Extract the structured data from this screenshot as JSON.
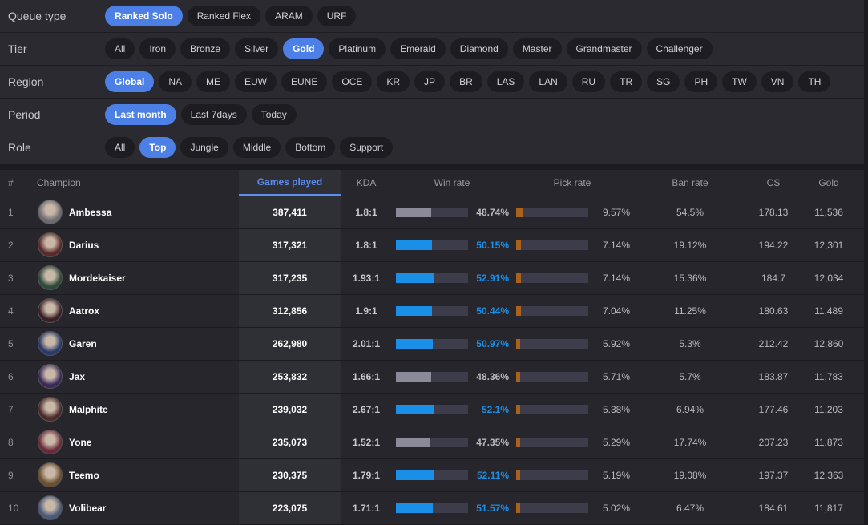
{
  "filters": [
    {
      "label": "Queue type",
      "options": [
        {
          "label": "Ranked Solo",
          "active": true
        },
        {
          "label": "Ranked Flex"
        },
        {
          "label": "ARAM"
        },
        {
          "label": "URF"
        }
      ]
    },
    {
      "label": "Tier",
      "options": [
        {
          "label": "All"
        },
        {
          "label": "Iron"
        },
        {
          "label": "Bronze"
        },
        {
          "label": "Silver"
        },
        {
          "label": "Gold",
          "active": true
        },
        {
          "label": "Platinum"
        },
        {
          "label": "Emerald"
        },
        {
          "label": "Diamond"
        },
        {
          "label": "Master"
        },
        {
          "label": "Grandmaster"
        },
        {
          "label": "Challenger"
        }
      ]
    },
    {
      "label": "Region",
      "options": [
        {
          "label": "Global",
          "active": true
        },
        {
          "label": "NA"
        },
        {
          "label": "ME"
        },
        {
          "label": "EUW"
        },
        {
          "label": "EUNE"
        },
        {
          "label": "OCE"
        },
        {
          "label": "KR"
        },
        {
          "label": "JP"
        },
        {
          "label": "BR"
        },
        {
          "label": "LAS"
        },
        {
          "label": "LAN"
        },
        {
          "label": "RU"
        },
        {
          "label": "TR"
        },
        {
          "label": "SG"
        },
        {
          "label": "PH"
        },
        {
          "label": "TW"
        },
        {
          "label": "VN"
        },
        {
          "label": "TH"
        }
      ]
    },
    {
      "label": "Period",
      "options": [
        {
          "label": "Last month",
          "active": true
        },
        {
          "label": "Last 7days"
        },
        {
          "label": "Today"
        }
      ]
    },
    {
      "label": "Role",
      "options": [
        {
          "label": "All"
        },
        {
          "label": "Top",
          "active": true
        },
        {
          "label": "Jungle"
        },
        {
          "label": "Middle"
        },
        {
          "label": "Bottom"
        },
        {
          "label": "Support"
        }
      ]
    }
  ],
  "table": {
    "columns": [
      {
        "label": "#"
      },
      {
        "label": "Champion"
      },
      {
        "label": "Games played",
        "sorted": true
      },
      {
        "label": "KDA"
      },
      {
        "label": "Win rate"
      },
      {
        "label": "Pick rate"
      },
      {
        "label": "Ban rate"
      },
      {
        "label": "CS"
      },
      {
        "label": "Gold"
      }
    ],
    "bar_scale": [
      0,
      100
    ],
    "rows": [
      {
        "rank": 1,
        "champion": "Ambessa",
        "games": "387,411",
        "kda": "1.8:1",
        "win_rate": {
          "value": 48.74,
          "label": "48.74%"
        },
        "pick_rate": {
          "value": 9.57,
          "label": "9.57%"
        },
        "ban_rate": "54.5%",
        "cs": "178.13",
        "gold": "11,536"
      },
      {
        "rank": 2,
        "champion": "Darius",
        "games": "317,321",
        "kda": "1.8:1",
        "win_rate": {
          "value": 50.15,
          "label": "50.15%",
          "highlight": true
        },
        "pick_rate": {
          "value": 7.14,
          "label": "7.14%"
        },
        "ban_rate": "19.12%",
        "cs": "194.22",
        "gold": "12,301"
      },
      {
        "rank": 3,
        "champion": "Mordekaiser",
        "games": "317,235",
        "kda": "1.93:1",
        "win_rate": {
          "value": 52.91,
          "label": "52.91%",
          "highlight": true
        },
        "pick_rate": {
          "value": 7.14,
          "label": "7.14%"
        },
        "ban_rate": "15.36%",
        "cs": "184.7",
        "gold": "12,034"
      },
      {
        "rank": 4,
        "champion": "Aatrox",
        "games": "312,856",
        "kda": "1.9:1",
        "win_rate": {
          "value": 50.44,
          "label": "50.44%",
          "highlight": true
        },
        "pick_rate": {
          "value": 7.04,
          "label": "7.04%"
        },
        "ban_rate": "11.25%",
        "cs": "180.63",
        "gold": "11,489"
      },
      {
        "rank": 5,
        "champion": "Garen",
        "games": "262,980",
        "kda": "2.01:1",
        "win_rate": {
          "value": 50.97,
          "label": "50.97%",
          "highlight": true
        },
        "pick_rate": {
          "value": 5.92,
          "label": "5.92%"
        },
        "ban_rate": "5.3%",
        "cs": "212.42",
        "gold": "12,860"
      },
      {
        "rank": 6,
        "champion": "Jax",
        "games": "253,832",
        "kda": "1.66:1",
        "win_rate": {
          "value": 48.36,
          "label": "48.36%"
        },
        "pick_rate": {
          "value": 5.71,
          "label": "5.71%"
        },
        "ban_rate": "5.7%",
        "cs": "183.87",
        "gold": "11,783"
      },
      {
        "rank": 7,
        "champion": "Malphite",
        "games": "239,032",
        "kda": "2.67:1",
        "win_rate": {
          "value": 52.1,
          "label": "52.1%",
          "highlight": true
        },
        "pick_rate": {
          "value": 5.38,
          "label": "5.38%"
        },
        "ban_rate": "6.94%",
        "cs": "177.46",
        "gold": "11,203"
      },
      {
        "rank": 8,
        "champion": "Yone",
        "games": "235,073",
        "kda": "1.52:1",
        "win_rate": {
          "value": 47.35,
          "label": "47.35%"
        },
        "pick_rate": {
          "value": 5.29,
          "label": "5.29%"
        },
        "ban_rate": "17.74%",
        "cs": "207.23",
        "gold": "11,873"
      },
      {
        "rank": 9,
        "champion": "Teemo",
        "games": "230,375",
        "kda": "1.79:1",
        "win_rate": {
          "value": 52.11,
          "label": "52.11%",
          "highlight": true
        },
        "pick_rate": {
          "value": 5.19,
          "label": "5.19%"
        },
        "ban_rate": "19.08%",
        "cs": "197.37",
        "gold": "12,363"
      },
      {
        "rank": 10,
        "champion": "Volibear",
        "games": "223,075",
        "kda": "1.71:1",
        "win_rate": {
          "value": 51.57,
          "label": "51.57%",
          "highlight": true
        },
        "pick_rate": {
          "value": 5.02,
          "label": "5.02%"
        },
        "ban_rate": "6.47%",
        "cs": "184.61",
        "gold": "11,817"
      }
    ]
  }
}
